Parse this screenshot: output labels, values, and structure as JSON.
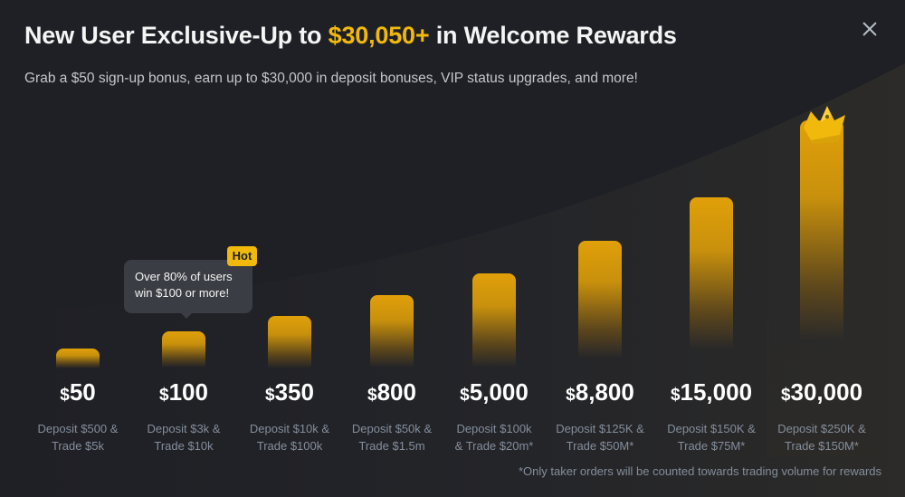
{
  "header": {
    "title_prefix": "New User Exclusive-Up to ",
    "title_highlight": "$30,050+",
    "title_suffix": " in Welcome Rewards",
    "subtitle": "Grab a $50 sign-up bonus, earn up to $30,000 in deposit bonuses, VIP status upgrades, and more!"
  },
  "tooltip": {
    "text_line1": "Over 80% of users",
    "text_line2": "win $100 or more!",
    "badge": "Hot"
  },
  "currency_symbol": "$",
  "tiers": [
    {
      "amount": "50",
      "cond_line1": "Deposit $500 &",
      "cond_line2": "Trade $5k"
    },
    {
      "amount": "100",
      "cond_line1": "Deposit $3k &",
      "cond_line2": "Trade $10k"
    },
    {
      "amount": "350",
      "cond_line1": "Deposit $10k &",
      "cond_line2": "Trade $100k"
    },
    {
      "amount": "800",
      "cond_line1": "Deposit $50k &",
      "cond_line2": "Trade $1.5m"
    },
    {
      "amount": "5,000",
      "cond_line1": "Deposit $100k",
      "cond_line2": "& Trade $20m*"
    },
    {
      "amount": "8,800",
      "cond_line1": "Deposit $125K &",
      "cond_line2": "Trade $50M*"
    },
    {
      "amount": "15,000",
      "cond_line1": "Deposit $150K &",
      "cond_line2": "Trade $75M*"
    },
    {
      "amount": "30,000",
      "cond_line1": "Deposit $250K &",
      "cond_line2": "Trade $150M*"
    }
  ],
  "footnote": "*Only taker orders will be counted towards trading volume for rewards",
  "colors": {
    "accent": "#f0b90b",
    "background": "#1f2025",
    "muted": "#848e9c"
  },
  "icons": {
    "close": "close-icon",
    "crown": "crown-icon"
  }
}
